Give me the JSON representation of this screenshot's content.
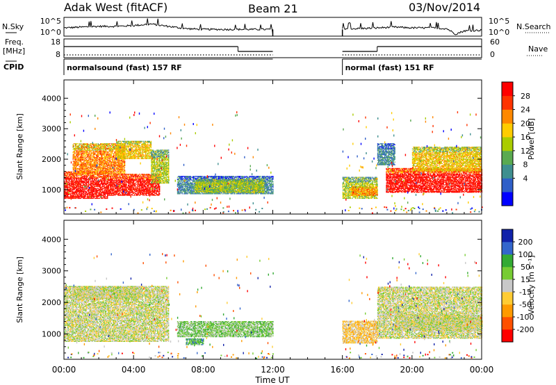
{
  "header": {
    "title": "Adak West (fitACF)",
    "beam": "Beam 21",
    "date": "03/Nov/2014"
  },
  "chart_data": {
    "type": "heatmap",
    "time_axis": {
      "xlabel": "Time UT",
      "ticks": [
        "00:00",
        "04:00",
        "08:00",
        "12:00",
        "16:00",
        "20:00",
        "00:00"
      ],
      "tick_hours": [
        0,
        4,
        8,
        12,
        16,
        20,
        24
      ],
      "xlim": [
        0,
        24
      ]
    },
    "gap_hours": [
      12,
      16
    ],
    "nsky_panel": {
      "left_label": "N.Sky",
      "right_label": "N.Search",
      "yticks": [
        "10^5",
        "10^0"
      ],
      "series": [
        {
          "segment": [
            0,
            12
          ],
          "trace": [
            [
              0,
              0.45
            ],
            [
              1,
              0.5
            ],
            [
              2,
              0.55
            ],
            [
              3,
              0.55
            ],
            [
              4,
              0.6
            ],
            [
              5,
              0.7
            ],
            [
              6,
              0.55
            ],
            [
              7,
              0.4
            ],
            [
              8,
              0.35
            ],
            [
              9,
              0.35
            ],
            [
              10,
              0.35
            ],
            [
              11,
              0.35
            ],
            [
              12,
              0.35
            ]
          ]
        },
        {
          "segment": [
            16,
            24
          ],
          "trace": [
            [
              16,
              0.4
            ],
            [
              17,
              0.4
            ],
            [
              18,
              0.45
            ],
            [
              19,
              0.5
            ],
            [
              20,
              0.45
            ],
            [
              21,
              0.45
            ],
            [
              22,
              0.4
            ],
            [
              22.5,
              0.05
            ],
            [
              23,
              0.25
            ],
            [
              24,
              0.3
            ]
          ]
        }
      ]
    },
    "freq_panel": {
      "left_label": "Freq.",
      "left_unit": "[MHz]",
      "right_label": "Nave",
      "left_ticks": [
        "18",
        "8"
      ],
      "right_ticks": [
        "60",
        "0"
      ],
      "freq_steps": [
        [
          0,
          10,
          14.5
        ],
        [
          10,
          12,
          11
        ],
        [
          16,
          18,
          11
        ],
        [
          18,
          24,
          14.5
        ]
      ],
      "nave_level": 8.5
    },
    "cpid_panel": {
      "label": "CPID",
      "segments": [
        {
          "start": 0,
          "end": 12,
          "text": "normalsound (fast) 157 RF"
        },
        {
          "start": 16,
          "end": 24,
          "text": "normal (fast) 151 RF"
        }
      ]
    },
    "power_panel": {
      "ylabel": "Slant Range [km]",
      "yticks": [
        1000,
        2000,
        3000,
        4000
      ],
      "ylim": [
        200,
        4600
      ],
      "colorbar": {
        "label": "Power [dB]",
        "ticks": [
          "28",
          "24",
          "20",
          "16",
          "12",
          "8",
          "4"
        ],
        "colors": [
          "#0000ff",
          "#2f5fc8",
          "#3f8f8f",
          "#5aaa50",
          "#aacc00",
          "#ffcc00",
          "#ff8800",
          "#ff3300",
          "#ff0000"
        ]
      },
      "regions": [
        {
          "t": [
            0,
            2.5
          ],
          "r": [
            700,
            1600
          ],
          "level": 8
        },
        {
          "t": [
            2.5,
            5.5
          ],
          "r": [
            800,
            1500
          ],
          "level": 8
        },
        {
          "t": [
            0.5,
            3.5
          ],
          "r": [
            1500,
            2500
          ],
          "level": 6
        },
        {
          "t": [
            3,
            5
          ],
          "r": [
            2000,
            2600
          ],
          "level": 5
        },
        {
          "t": [
            5,
            6
          ],
          "r": [
            1200,
            2300
          ],
          "level": 4
        },
        {
          "t": [
            6.5,
            12
          ],
          "r": [
            850,
            1450
          ],
          "level": 2
        },
        {
          "t": [
            7.5,
            11.5
          ],
          "r": [
            900,
            1350
          ],
          "level": 4
        },
        {
          "t": [
            16,
            18
          ],
          "r": [
            700,
            1400
          ],
          "level": 4
        },
        {
          "t": [
            16.5,
            18
          ],
          "r": [
            800,
            1100
          ],
          "level": 6
        },
        {
          "t": [
            18,
            19
          ],
          "r": [
            1800,
            2500
          ],
          "level": 2
        },
        {
          "t": [
            18.5,
            24
          ],
          "r": [
            900,
            1700
          ],
          "level": 8
        },
        {
          "t": [
            20,
            24
          ],
          "r": [
            1600,
            2400
          ],
          "level": 5
        }
      ]
    },
    "velocity_panel": {
      "ylabel": "Slant Range [km]",
      "yticks": [
        1000,
        2000,
        3000,
        4000
      ],
      "ylim": [
        200,
        4600
      ],
      "colorbar": {
        "label": "Velocity [m s⁻¹]",
        "ticks": [
          "200",
          "100",
          "50",
          "15",
          "-15",
          "-50",
          "-100",
          "-200"
        ],
        "colors": [
          "#ff0000",
          "#ff5000",
          "#ff9a00",
          "#ffcc33",
          "#c8c8c8",
          "#77cc33",
          "#33aa33",
          "#3366cc",
          "#1122aa"
        ]
      },
      "regions": [
        {
          "t": [
            0,
            6
          ],
          "r": [
            750,
            2500
          ],
          "level": 4
        },
        {
          "t": [
            0.5,
            4.5
          ],
          "r": [
            2100,
            2500
          ],
          "level": 4
        },
        {
          "t": [
            6.5,
            12
          ],
          "r": [
            900,
            1400
          ],
          "level": 5
        },
        {
          "t": [
            7,
            8
          ],
          "r": [
            650,
            850
          ],
          "level": 6
        },
        {
          "t": [
            16,
            18
          ],
          "r": [
            700,
            1400
          ],
          "level": 3
        },
        {
          "t": [
            18,
            24
          ],
          "r": [
            850,
            2500
          ],
          "level": 4
        },
        {
          "t": [
            19,
            24
          ],
          "r": [
            1100,
            1600
          ],
          "level": 4
        }
      ]
    }
  }
}
